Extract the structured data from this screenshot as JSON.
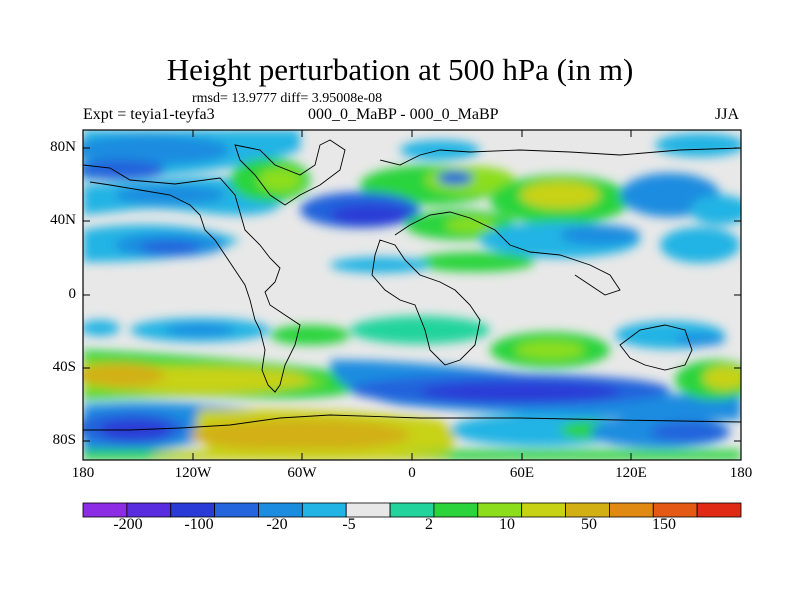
{
  "header": {
    "title": "Height perturbation at 500 hPa (in m)",
    "stats": "rmsd= 13.9777 diff= 3.95008e-08",
    "experiment": "Expt = teyia1-teyfa3",
    "comparison": "000_0_MaBP - 000_0_MaBP",
    "season": "JJA"
  },
  "axes": {
    "lat_labels": [
      "80N",
      "40N",
      "0",
      "40S",
      "80S"
    ],
    "lon_labels": [
      "180",
      "120W",
      "60W",
      "0",
      "60E",
      "120E",
      "180"
    ]
  },
  "colorbar": {
    "labels": [
      "-200",
      "-100",
      "-20",
      "-5",
      "2",
      "10",
      "50",
      "150"
    ],
    "colors": [
      "#8c2ce4",
      "#5a2ce0",
      "#2a3ad6",
      "#2464dc",
      "#1c8ce0",
      "#22b4e4",
      "#e8e8e8",
      "#22d49c",
      "#2cd43c",
      "#8cde1c",
      "#c8d214",
      "#d2b014",
      "#e08a14",
      "#e45a14",
      "#e02a14"
    ]
  },
  "colors": {
    "neutral": "#e8e8e8",
    "deep_blue": "#2a3ad6",
    "mid_blue": "#2464dc",
    "light_blue": "#1c8ce0",
    "cyan": "#22b4e4",
    "teal": "#22d49c",
    "green": "#2cd43c",
    "lime": "#8cde1c",
    "yellow": "#c8d214",
    "mustard": "#d2b014",
    "orange": "#e08a14"
  }
}
